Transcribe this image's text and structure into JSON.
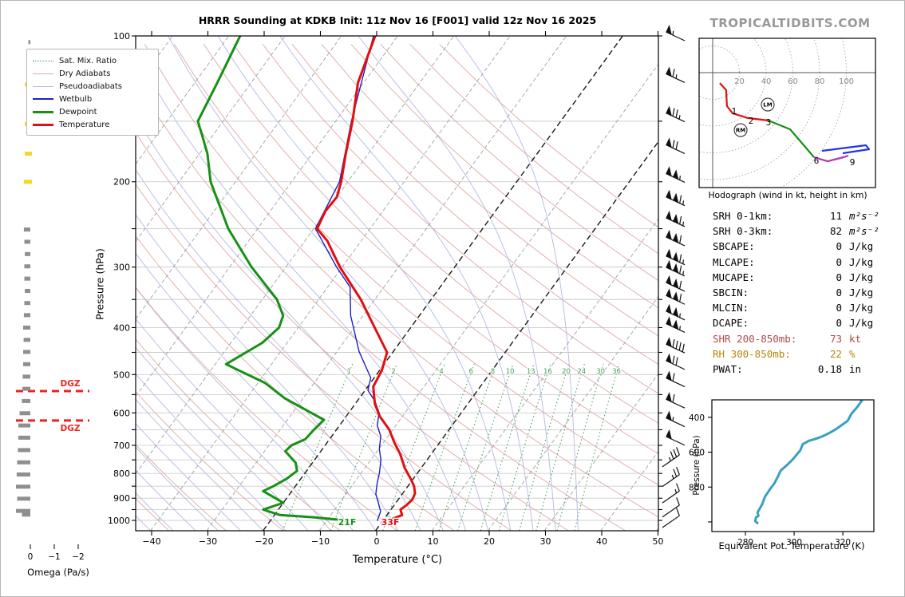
{
  "title": "HRRR Sounding at KDKB Init: 11z Nov 16 [F001] valid 12z Nov 16 2025",
  "watermark": "TROPICALTIDBITS.COM",
  "skewt": {
    "xlabel": "Temperature (°C)",
    "ylabel": "Pressure (hPa)",
    "temp_ticks": [
      -40,
      -30,
      -20,
      -10,
      0,
      10,
      20,
      30,
      40,
      50
    ],
    "pressure_labels": [
      100,
      200,
      300,
      400,
      500,
      600,
      700,
      800,
      900,
      1000
    ],
    "surface_dewpoint_label": "21F",
    "surface_temp_label": "33F",
    "dgz_label": "DGZ",
    "legend": [
      {
        "label": "Sat. Mix. Ratio",
        "color": "#46a05c",
        "style": "dotted",
        "weight": 1.5
      },
      {
        "label": "Dry Adiabats",
        "color": "#dfa8a8",
        "style": "solid",
        "weight": 1.5
      },
      {
        "label": "Pseudoadiabats",
        "color": "#b4b9e2",
        "style": "solid",
        "weight": 1.5
      },
      {
        "label": "Wetbulb",
        "color": "#2020c0",
        "style": "solid",
        "weight": 2
      },
      {
        "label": "Dewpoint",
        "color": "#169116",
        "style": "solid",
        "weight": 3.5
      },
      {
        "label": "Temperature",
        "color": "#e01010",
        "style": "solid",
        "weight": 3.5
      }
    ]
  },
  "omega": {
    "label": "Omega (Pa/s)",
    "ticks": [
      0,
      -1,
      -2
    ]
  },
  "hodograph": {
    "caption": "Hodograph (wind in kt, height in km)",
    "ring_labels": [
      20,
      40,
      60,
      80,
      100
    ]
  },
  "thetae": {
    "xlabel": "Equivalent Pot. Temperature (K)",
    "ylabel": "Pressure (hPa)",
    "x_ticks": [
      280,
      300,
      320
    ],
    "p_ticks": [
      400,
      600,
      800
    ]
  },
  "stats": {
    "rows": [
      {
        "label": "SRH 0-1km:",
        "value": "11",
        "unit": "m²s⁻²",
        "color": "#000000",
        "math": true
      },
      {
        "label": "SRH 0-3km:",
        "value": "82",
        "unit": "m²s⁻²",
        "color": "#000000",
        "math": true
      },
      {
        "label": "SBCAPE:",
        "value": "0",
        "unit": "J/kg",
        "color": "#000000",
        "math": false
      },
      {
        "label": "MLCAPE:",
        "value": "0",
        "unit": "J/kg",
        "color": "#000000",
        "math": false
      },
      {
        "label": "MUCAPE:",
        "value": "0",
        "unit": "J/kg",
        "color": "#000000",
        "math": false
      },
      {
        "label": "SBCIN:",
        "value": "0",
        "unit": "J/kg",
        "color": "#000000",
        "math": false
      },
      {
        "label": "MLCIN:",
        "value": "0",
        "unit": "J/kg",
        "color": "#000000",
        "math": false
      },
      {
        "label": "DCAPE:",
        "value": "0",
        "unit": "J/kg",
        "color": "#000000",
        "math": false
      },
      {
        "label": "SHR 200-850mb:",
        "value": "73",
        "unit": "kt",
        "color": "#ae4a4a",
        "math": false
      },
      {
        "label": "RH 300-850mb:",
        "value": "22",
        "unit": "%",
        "color": "#b8860b",
        "math": false
      },
      {
        "label": "PWAT:",
        "value": "0.18",
        "unit": "in",
        "color": "#000000",
        "math": false
      }
    ]
  },
  "chart_data": {
    "type": "line",
    "subtype": "skewt-sounding",
    "skewt": {
      "pressure_range_hPa": [
        100,
        1050
      ],
      "temp_axis_range_c": [
        -40,
        50
      ],
      "isotherm_step_c": 10,
      "mixing_ratio_lines_gkg": [
        1,
        2,
        4,
        6,
        8,
        10,
        13,
        16,
        20,
        24,
        30,
        36
      ],
      "dgz_pressures_hPa": [
        541,
        622
      ],
      "series": [
        {
          "name": "Temperature",
          "color": "#e01010",
          "width": 3,
          "points": [
            [
              100,
              -64
            ],
            [
              125,
              -61
            ],
            [
              150,
              -57
            ],
            [
              175,
              -54
            ],
            [
              200,
              -51.2
            ],
            [
              215,
              -50
            ],
            [
              230,
              -50.2
            ],
            [
              250,
              -49.4
            ],
            [
              265,
              -46
            ],
            [
              300,
              -40.4
            ],
            [
              350,
              -32.5
            ],
            [
              400,
              -26.4
            ],
            [
              450,
              -21
            ],
            [
              490,
              -19.6
            ],
            [
              530,
              -19
            ],
            [
              575,
              -16.5
            ],
            [
              610,
              -14
            ],
            [
              650,
              -10.6
            ],
            [
              690,
              -8.1
            ],
            [
              730,
              -5.5
            ],
            [
              780,
              -2.9
            ],
            [
              820,
              -0.5
            ],
            [
              850,
              1.1
            ],
            [
              880,
              2.2
            ],
            [
              905,
              2.5
            ],
            [
              930,
              2.2
            ],
            [
              950,
              1.7
            ],
            [
              965,
              2.3
            ],
            [
              975,
              2.7
            ],
            [
              985,
              2
            ],
            [
              1000,
              1
            ]
          ]
        },
        {
          "name": "Dewpoint",
          "color": "#169116",
          "width": 3,
          "points": [
            [
              100,
              -88
            ],
            [
              125,
              -86
            ],
            [
              150,
              -84.5
            ],
            [
              160,
              -82
            ],
            [
              175,
              -78.6
            ],
            [
              200,
              -74.4
            ],
            [
              250,
              -65.2
            ],
            [
              300,
              -56.1
            ],
            [
              350,
              -47.4
            ],
            [
              378,
              -44.2
            ],
            [
              400,
              -43.4
            ],
            [
              430,
              -44.4
            ],
            [
              476,
              -48.1
            ],
            [
              520,
              -38.8
            ],
            [
              560,
              -33.2
            ],
            [
              620,
              -23.5
            ],
            [
              650,
              -24
            ],
            [
              680,
              -24.3
            ],
            [
              700,
              -26
            ],
            [
              720,
              -26.3
            ],
            [
              760,
              -23
            ],
            [
              790,
              -21.7
            ],
            [
              820,
              -22.5
            ],
            [
              850,
              -23.9
            ],
            [
              870,
              -25.1
            ],
            [
              900,
              -22
            ],
            [
              920,
              -20
            ],
            [
              950,
              -22.7
            ],
            [
              975,
              -19
            ],
            [
              985,
              -13
            ],
            [
              1000,
              -6.5
            ]
          ]
        },
        {
          "name": "Wetbulb",
          "color": "#2020c0",
          "width": 1.4,
          "points": [
            [
              100,
              -64.3
            ],
            [
              150,
              -57.2
            ],
            [
              200,
              -51.5
            ],
            [
              250,
              -49.7
            ],
            [
              300,
              -41
            ],
            [
              330,
              -36
            ],
            [
              378,
              -32.2
            ],
            [
              448,
              -26.1
            ],
            [
              508,
              -20.6
            ],
            [
              539,
              -19.5
            ],
            [
              568,
              -16.8
            ],
            [
              600,
              -14.6
            ],
            [
              637,
              -13.3
            ],
            [
              670,
              -11.3
            ],
            [
              712,
              -9.9
            ],
            [
              750,
              -8.2
            ],
            [
              797,
              -6.8
            ],
            [
              840,
              -5.8
            ],
            [
              882,
              -4.7
            ],
            [
              920,
              -3.1
            ],
            [
              958,
              -1.6
            ],
            [
              1000,
              -1
            ]
          ]
        }
      ],
      "surface_values_f": {
        "dewpoint": 21,
        "temperature": 33
      }
    },
    "wind_barbs_p_speedkt_mirror": [
      [
        100,
        55,
        0
      ],
      [
        122,
        65,
        0
      ],
      [
        147,
        75,
        0
      ],
      [
        171,
        70,
        0
      ],
      [
        196,
        105,
        0
      ],
      [
        219,
        115,
        0
      ],
      [
        242,
        115,
        0
      ],
      [
        265,
        110,
        0
      ],
      [
        290,
        115,
        0
      ],
      [
        306,
        115,
        0
      ],
      [
        329,
        110,
        0
      ],
      [
        350,
        110,
        0
      ],
      [
        377,
        105,
        0
      ],
      [
        400,
        105,
        0
      ],
      [
        441,
        90,
        0
      ],
      [
        477,
        70,
        0
      ],
      [
        518,
        60,
        0
      ],
      [
        573,
        60,
        0
      ],
      [
        626,
        55,
        0
      ],
      [
        684,
        50,
        0
      ],
      [
        752,
        35,
        1
      ],
      [
        826,
        25,
        1
      ],
      [
        893,
        15,
        1
      ],
      [
        955,
        10,
        1
      ],
      [
        1004,
        10,
        1
      ]
    ],
    "omega_profile": {
      "units": "Pa/s",
      "gray_p_w": [
        [
          103,
          0.08
        ],
        [
          251,
          0.27
        ],
        [
          266,
          0.25
        ],
        [
          282,
          0.23
        ],
        [
          299,
          0.25
        ],
        [
          317,
          0.25
        ],
        [
          336,
          0.23
        ],
        [
          356,
          0.25
        ],
        [
          377,
          0.27
        ],
        [
          400,
          0.3
        ],
        [
          424,
          0.28
        ],
        [
          449,
          0.3
        ],
        [
          476,
          0.3
        ],
        [
          505,
          0.32
        ],
        [
          535,
          0.33
        ],
        [
          567,
          0.35
        ],
        [
          601,
          0.45
        ],
        [
          637,
          0.5
        ],
        [
          675,
          0.5
        ],
        [
          716,
          0.52
        ],
        [
          759,
          0.55
        ],
        [
          804,
          0.57
        ],
        [
          852,
          0.6
        ],
        [
          902,
          0.55
        ],
        [
          956,
          0.6
        ],
        [
          973,
          0.35
        ]
      ],
      "yellow_p_w": [
        [
          126,
          0.3
        ],
        [
          152,
          0.3
        ],
        [
          175,
          0.3
        ],
        [
          200,
          0.34
        ]
      ]
    },
    "hodograph": {
      "rings_kt": [
        20,
        40,
        60,
        80,
        100
      ],
      "segments": [
        {
          "color": "#e01010",
          "pts": [
            [
              5.4,
              -7.8
            ],
            [
              10.1,
              -13.1
            ],
            [
              10.7,
              -25.1
            ],
            [
              14.9,
              -30.4
            ],
            [
              26.3,
              -34.0
            ],
            [
              41.8,
              -35.8
            ]
          ]
        },
        {
          "color": "#169116",
          "pts": [
            [
              41.8,
              -35.8
            ],
            [
              57.9,
              -42.4
            ],
            [
              75.8,
              -63.3
            ]
          ]
        },
        {
          "color": "#b535b5",
          "pts": [
            [
              75.8,
              -63.3
            ],
            [
              86.0,
              -66.3
            ],
            [
              97.9,
              -63.3
            ],
            [
              101.5,
              -62.1
            ]
          ]
        },
        {
          "color": "#2335e5",
          "pts": [
            [
              81.8,
              -58.5
            ],
            [
              114.6,
              -54.3
            ],
            [
              117.0,
              -57.3
            ],
            [
              97.3,
              -60.3
            ]
          ]
        }
      ],
      "height_labels_km": [
        [
          "1",
          16.1,
          -28.7
        ],
        [
          "2",
          28.7,
          -35.8
        ],
        [
          "3",
          41.8,
          -37.0
        ],
        [
          "6",
          77.6,
          -65.7
        ],
        [
          "9",
          104.5,
          -66.9
        ]
      ],
      "storm_motions": [
        [
          "LM",
          41.2,
          -23.9
        ],
        [
          "RM",
          20.9,
          -43.0
        ]
      ]
    },
    "theta_e": {
      "color": "#3a9fc1",
      "p_range": [
        300,
        1050
      ],
      "x_range_k": [
        266,
        333
      ],
      "points": [
        [
          300,
          328
        ],
        [
          340,
          326
        ],
        [
          380,
          323.5
        ],
        [
          420,
          322
        ],
        [
          445,
          319.5
        ],
        [
          470,
          317
        ],
        [
          490,
          314.5
        ],
        [
          510,
          311.5
        ],
        [
          525,
          308.5
        ],
        [
          535,
          306
        ],
        [
          555,
          303.5
        ],
        [
          590,
          302.5
        ],
        [
          615,
          301
        ],
        [
          640,
          299.5
        ],
        [
          675,
          297
        ],
        [
          705,
          294.5
        ],
        [
          735,
          293.5
        ],
        [
          780,
          291.8
        ],
        [
          810,
          290.2
        ],
        [
          855,
          288
        ],
        [
          895,
          287
        ],
        [
          920,
          286
        ],
        [
          945,
          285
        ],
        [
          965,
          285.3
        ],
        [
          975,
          284.3
        ],
        [
          995,
          284
        ],
        [
          1010,
          285.2
        ]
      ]
    }
  }
}
